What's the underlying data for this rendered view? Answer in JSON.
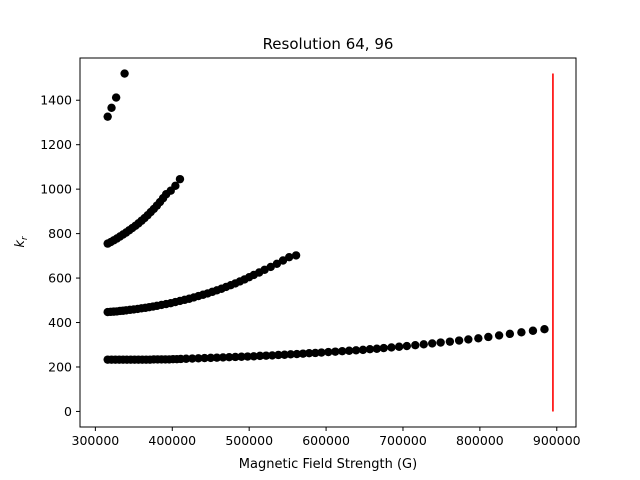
{
  "chart_data": {
    "type": "scatter",
    "title": "Resolution 64, 96",
    "xlabel": "Magnetic Field Strength (G)",
    "ylabel_base": "k",
    "ylabel_sub": "r",
    "xlim": [
      280000,
      925000
    ],
    "ylim": [
      -70,
      1590
    ],
    "x_ticks": [
      300000,
      400000,
      500000,
      600000,
      700000,
      800000,
      900000
    ],
    "x_tick_labels": [
      "300000",
      "400000",
      "500000",
      "600000",
      "700000",
      "800000",
      "900000"
    ],
    "y_ticks": [
      0,
      200,
      400,
      600,
      800,
      1000,
      1200,
      1400
    ],
    "y_tick_labels": [
      "0",
      "200",
      "400",
      "600",
      "800",
      "1000",
      "1200",
      "1400"
    ],
    "grid": false,
    "marker_color": "#000000",
    "series": [
      {
        "points": [
          [
            316000,
            233
          ],
          [
            321000,
            233
          ],
          [
            326000,
            233
          ],
          [
            331000,
            233
          ],
          [
            336000,
            233
          ],
          [
            341000,
            233
          ],
          [
            346000,
            233
          ],
          [
            351000,
            233
          ],
          [
            356000,
            233
          ],
          [
            361000,
            233
          ],
          [
            366000,
            233
          ],
          [
            371000,
            233
          ],
          [
            376000,
            234
          ],
          [
            381000,
            234
          ],
          [
            386000,
            234
          ],
          [
            391000,
            234
          ],
          [
            396000,
            234
          ],
          [
            401000,
            235
          ],
          [
            406000,
            235
          ],
          [
            411000,
            236
          ],
          [
            418000,
            237
          ],
          [
            426000,
            238
          ],
          [
            434000,
            239
          ],
          [
            442000,
            240
          ],
          [
            450000,
            241
          ],
          [
            458000,
            242
          ],
          [
            466000,
            243
          ],
          [
            474000,
            244
          ],
          [
            482000,
            245
          ],
          [
            490000,
            246
          ],
          [
            498000,
            247
          ],
          [
            506000,
            248
          ],
          [
            514000,
            250
          ],
          [
            522000,
            251
          ],
          [
            530000,
            252
          ],
          [
            538000,
            254
          ],
          [
            546000,
            255
          ],
          [
            554000,
            257
          ],
          [
            562000,
            258
          ],
          [
            570000,
            260
          ],
          [
            578000,
            262
          ],
          [
            586000,
            263
          ],
          [
            594000,
            265
          ],
          [
            603000,
            267
          ],
          [
            612000,
            269
          ],
          [
            621000,
            271
          ],
          [
            630000,
            273
          ],
          [
            639000,
            275
          ],
          [
            648000,
            277
          ],
          [
            657000,
            280
          ],
          [
            666000,
            282
          ],
          [
            675000,
            285
          ],
          [
            685000,
            288
          ],
          [
            695000,
            291
          ],
          [
            705000,
            294
          ],
          [
            716000,
            298
          ],
          [
            727000,
            302
          ],
          [
            738000,
            306
          ],
          [
            749000,
            310
          ],
          [
            761000,
            314
          ],
          [
            773000,
            319
          ],
          [
            785000,
            324
          ],
          [
            798000,
            329
          ],
          [
            811000,
            335
          ],
          [
            825000,
            342
          ],
          [
            839000,
            349
          ],
          [
            854000,
            356
          ],
          [
            869000,
            363
          ],
          [
            884000,
            370
          ]
        ]
      },
      {
        "points": [
          [
            316000,
            447
          ],
          [
            320000,
            448
          ],
          [
            324000,
            449
          ],
          [
            328000,
            450
          ],
          [
            332000,
            452
          ],
          [
            336000,
            453
          ],
          [
            340000,
            455
          ],
          [
            345000,
            457
          ],
          [
            350000,
            459
          ],
          [
            355000,
            461
          ],
          [
            360000,
            464
          ],
          [
            365000,
            466
          ],
          [
            370000,
            469
          ],
          [
            375000,
            472
          ],
          [
            380000,
            475
          ],
          [
            386000,
            479
          ],
          [
            392000,
            483
          ],
          [
            398000,
            487
          ],
          [
            404000,
            492
          ],
          [
            410000,
            497
          ],
          [
            416000,
            502
          ],
          [
            422000,
            507
          ],
          [
            428000,
            513
          ],
          [
            434000,
            519
          ],
          [
            440000,
            525
          ],
          [
            446000,
            531
          ],
          [
            452000,
            538
          ],
          [
            458000,
            545
          ],
          [
            464000,
            552
          ],
          [
            470000,
            560
          ],
          [
            476000,
            568
          ],
          [
            482000,
            576
          ],
          [
            488000,
            585
          ],
          [
            494000,
            594
          ],
          [
            500000,
            604
          ],
          [
            506000,
            614
          ],
          [
            513000,
            625
          ],
          [
            520000,
            637
          ],
          [
            528000,
            650
          ],
          [
            536000,
            664
          ],
          [
            544000,
            679
          ],
          [
            552000,
            694
          ],
          [
            561000,
            702
          ]
        ]
      },
      {
        "points": [
          [
            316000,
            755
          ],
          [
            320000,
            762
          ],
          [
            324000,
            770
          ],
          [
            328000,
            778
          ],
          [
            332000,
            787
          ],
          [
            336000,
            796
          ],
          [
            340000,
            805
          ],
          [
            344000,
            815
          ],
          [
            348000,
            825
          ],
          [
            352000,
            835
          ],
          [
            356000,
            846
          ],
          [
            360000,
            858
          ],
          [
            364000,
            870
          ],
          [
            368000,
            883
          ],
          [
            372000,
            897
          ],
          [
            376000,
            911
          ],
          [
            380000,
            926
          ],
          [
            384000,
            942
          ],
          [
            388000,
            959
          ],
          [
            392000,
            977
          ],
          [
            398000,
            993
          ],
          [
            404000,
            1015
          ],
          [
            410000,
            1045
          ]
        ]
      },
      {
        "points": [
          [
            316000,
            1326
          ],
          [
            321000,
            1366
          ],
          [
            327000,
            1412
          ],
          [
            338000,
            1520
          ]
        ]
      }
    ],
    "vline": {
      "x": 895000,
      "y0": 0,
      "y1": 1520,
      "color": "#ff0000"
    }
  }
}
